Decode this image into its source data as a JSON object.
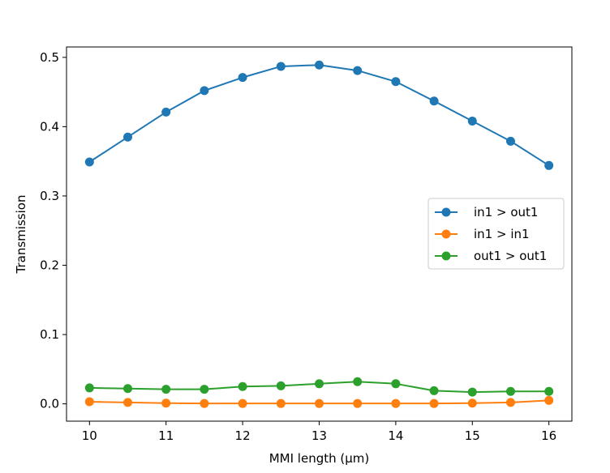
{
  "chart_data": {
    "type": "line",
    "title": "",
    "xlabel": "MMI length (µm)",
    "ylabel": "Transmission",
    "xlim": [
      9.7,
      16.3
    ],
    "ylim": [
      -0.025,
      0.515
    ],
    "xticks": [
      10,
      11,
      12,
      13,
      14,
      15,
      16
    ],
    "xtick_labels": [
      "10",
      "11",
      "12",
      "13",
      "14",
      "15",
      "16"
    ],
    "yticks": [
      0.0,
      0.1,
      0.2,
      0.3,
      0.4,
      0.5
    ],
    "ytick_labels": [
      "0.0",
      "0.1",
      "0.2",
      "0.3",
      "0.4",
      "0.5"
    ],
    "grid": false,
    "legend_position": "center-right",
    "x": [
      10,
      10.5,
      11,
      11.5,
      12,
      12.5,
      13,
      13.5,
      14,
      14.5,
      15,
      15.5,
      16
    ],
    "series": [
      {
        "name": "in1 > out1",
        "color": "#1f77b4",
        "values": [
          0.349,
          0.385,
          0.421,
          0.452,
          0.471,
          0.487,
          0.489,
          0.481,
          0.465,
          0.437,
          0.408,
          0.379,
          0.344
        ]
      },
      {
        "name": "in1 > in1",
        "color": "#ff7f0e",
        "values": [
          0.003,
          0.002,
          0.001,
          0.0005,
          0.0005,
          0.0005,
          0.0005,
          0.0005,
          0.0005,
          0.0005,
          0.001,
          0.002,
          0.005
        ]
      },
      {
        "name": "out1 > out1",
        "color": "#2ca02c",
        "values": [
          0.023,
          0.022,
          0.021,
          0.021,
          0.025,
          0.026,
          0.029,
          0.032,
          0.029,
          0.019,
          0.017,
          0.018,
          0.018
        ]
      }
    ]
  }
}
